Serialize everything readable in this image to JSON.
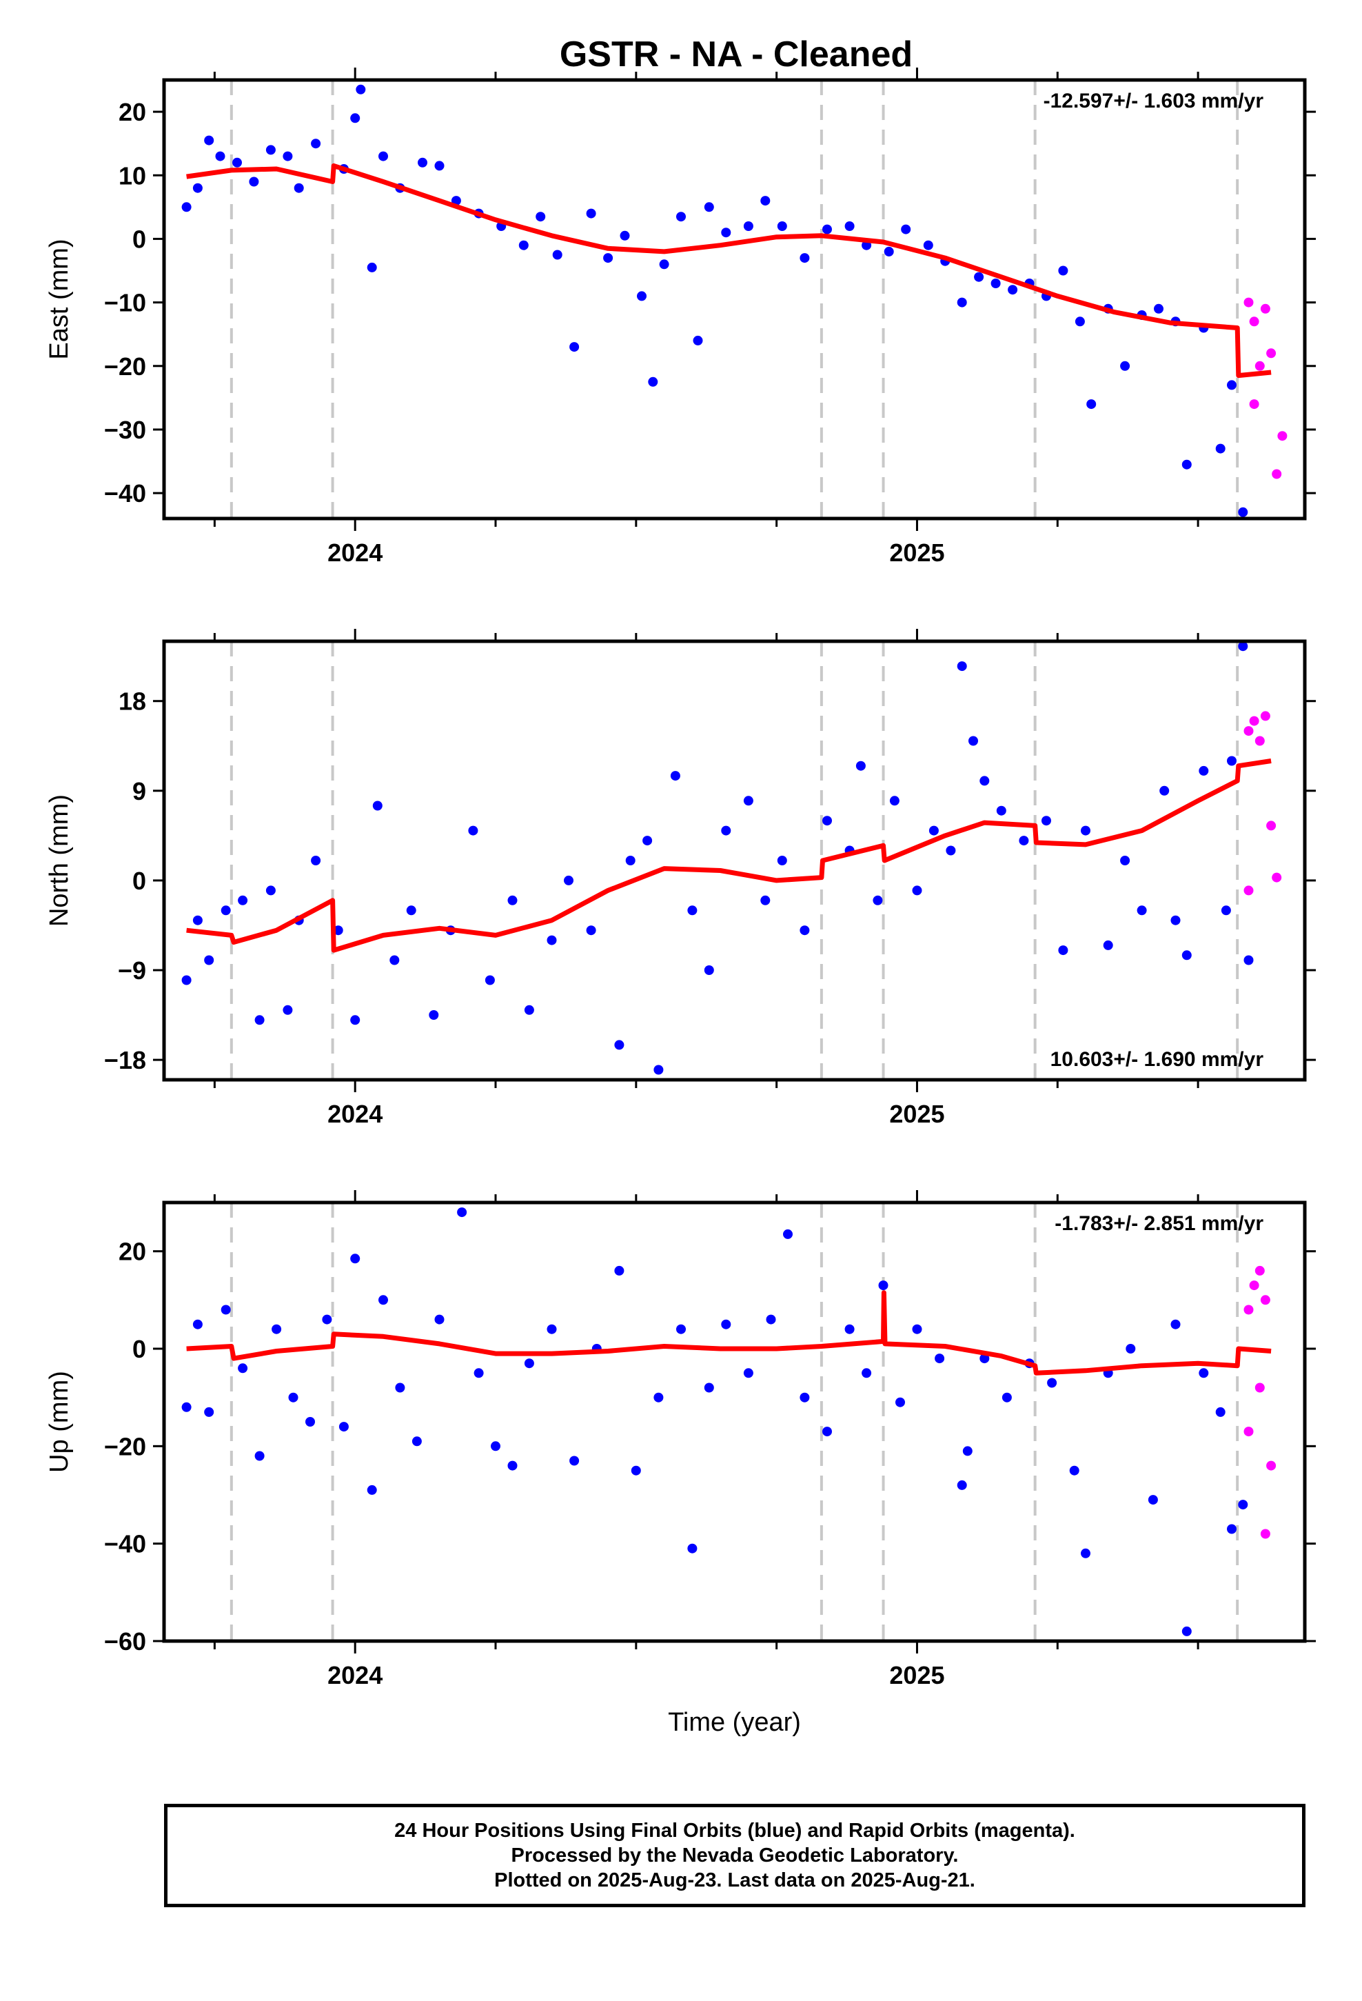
{
  "title": "GSTR  - NA - Cleaned",
  "footer": {
    "line1": "24 Hour Positions Using Final Orbits (blue) and Rapid Orbits (magenta).",
    "line2": "Processed by the Nevada Geodetic Laboratory.",
    "line3": "Plotted on 2025-Aug-23. Last data on 2025-Aug-21."
  },
  "colors": {
    "final": "#0000ff",
    "rapid": "#ff00ff",
    "model": "#ff0000",
    "event": "#c8c8c8"
  },
  "chart_data": [
    {
      "type": "scatter",
      "ylabel": "East (mm)",
      "xlabel": "",
      "rate": "-12.597+/- 1.603 mm/yr",
      "rate_position": "top-right",
      "xlim": [
        2023.66,
        2025.69
      ],
      "ylim": [
        -44,
        25
      ],
      "yticks": [
        20,
        10,
        0,
        -10,
        -20,
        -30,
        -40
      ],
      "xticks": [
        "2024",
        "2025"
      ],
      "events": [
        2023.78,
        2023.96,
        2024.83,
        2024.94,
        2025.21,
        2025.57
      ],
      "model": [
        [
          2023.7,
          9.8
        ],
        [
          2023.78,
          10.8
        ],
        [
          2023.86,
          11.0
        ],
        [
          2023.96,
          9.0
        ],
        [
          2023.962,
          11.5
        ],
        [
          2024.05,
          9.0
        ],
        [
          2024.15,
          6.0
        ],
        [
          2024.25,
          3.0
        ],
        [
          2024.35,
          0.5
        ],
        [
          2024.45,
          -1.5
        ],
        [
          2024.55,
          -2.0
        ],
        [
          2024.65,
          -1.0
        ],
        [
          2024.75,
          0.3
        ],
        [
          2024.83,
          0.5
        ],
        [
          2024.94,
          -0.5
        ],
        [
          2025.05,
          -3.0
        ],
        [
          2025.15,
          -6.0
        ],
        [
          2025.25,
          -9.0
        ],
        [
          2025.35,
          -11.5
        ],
        [
          2025.45,
          -13.2
        ],
        [
          2025.57,
          -14.0
        ],
        [
          2025.572,
          -21.5
        ],
        [
          2025.63,
          -21.0
        ]
      ],
      "final_points": [
        [
          2023.7,
          5.0
        ],
        [
          2023.72,
          8.0
        ],
        [
          2023.74,
          15.5
        ],
        [
          2023.76,
          13.0
        ],
        [
          2023.79,
          12.0
        ],
        [
          2023.82,
          9.0
        ],
        [
          2023.85,
          14.0
        ],
        [
          2023.88,
          13.0
        ],
        [
          2023.9,
          8.0
        ],
        [
          2023.93,
          15.0
        ],
        [
          2023.98,
          11.0
        ],
        [
          2024.0,
          19.0
        ],
        [
          2024.01,
          23.5
        ],
        [
          2024.03,
          -4.5
        ],
        [
          2024.05,
          13.0
        ],
        [
          2024.08,
          8.0
        ],
        [
          2024.12,
          12.0
        ],
        [
          2024.15,
          11.5
        ],
        [
          2024.18,
          6.0
        ],
        [
          2024.22,
          4.0
        ],
        [
          2024.26,
          2.0
        ],
        [
          2024.3,
          -1.0
        ],
        [
          2024.33,
          3.5
        ],
        [
          2024.36,
          -2.5
        ],
        [
          2024.39,
          -17.0
        ],
        [
          2024.42,
          4.0
        ],
        [
          2024.45,
          -3.0
        ],
        [
          2024.48,
          0.5
        ],
        [
          2024.51,
          -9.0
        ],
        [
          2024.53,
          -22.5
        ],
        [
          2024.55,
          -4.0
        ],
        [
          2024.58,
          3.5
        ],
        [
          2024.61,
          -16.0
        ],
        [
          2024.63,
          5.0
        ],
        [
          2024.66,
          1.0
        ],
        [
          2024.7,
          2.0
        ],
        [
          2024.73,
          6.0
        ],
        [
          2024.76,
          2.0
        ],
        [
          2024.8,
          -3.0
        ],
        [
          2024.84,
          1.5
        ],
        [
          2024.88,
          2.0
        ],
        [
          2024.91,
          -1.0
        ],
        [
          2024.95,
          -2.0
        ],
        [
          2024.98,
          1.5
        ],
        [
          2025.02,
          -1.0
        ],
        [
          2025.05,
          -3.5
        ],
        [
          2025.08,
          -10.0
        ],
        [
          2025.11,
          -6.0
        ],
        [
          2025.14,
          -7.0
        ],
        [
          2025.17,
          -8.0
        ],
        [
          2025.2,
          -7.0
        ],
        [
          2025.23,
          -9.0
        ],
        [
          2025.26,
          -5.0
        ],
        [
          2025.29,
          -13.0
        ],
        [
          2025.31,
          -26.0
        ],
        [
          2025.34,
          -11.0
        ],
        [
          2025.37,
          -20.0
        ],
        [
          2025.4,
          -12.0
        ],
        [
          2025.43,
          -11.0
        ],
        [
          2025.46,
          -13.0
        ],
        [
          2025.48,
          -35.5
        ],
        [
          2025.51,
          -14.0
        ],
        [
          2025.54,
          -33.0
        ],
        [
          2025.56,
          -23.0
        ],
        [
          2025.58,
          -43.0
        ]
      ],
      "rapid_points": [
        [
          2025.59,
          -10.0
        ],
        [
          2025.6,
          -13.0
        ],
        [
          2025.61,
          -20.0
        ],
        [
          2025.62,
          -11.0
        ],
        [
          2025.63,
          -18.0
        ],
        [
          2025.64,
          -37.0
        ],
        [
          2025.65,
          -31.0
        ],
        [
          2025.6,
          -26.0
        ]
      ]
    },
    {
      "type": "scatter",
      "ylabel": "North (mm)",
      "xlabel": "",
      "rate": "10.603+/- 1.690 mm/yr",
      "rate_position": "bottom-right",
      "xlim": [
        2023.66,
        2025.69
      ],
      "ylim": [
        -20,
        24
      ],
      "yticks": [
        18,
        9,
        0,
        -9,
        -18
      ],
      "xticks": [
        "2024",
        "2025"
      ],
      "events": [
        2023.78,
        2023.96,
        2024.83,
        2024.94,
        2025.21,
        2025.57
      ],
      "model": [
        [
          2023.7,
          -5.0
        ],
        [
          2023.78,
          -5.5
        ],
        [
          2023.784,
          -6.2
        ],
        [
          2023.86,
          -5.0
        ],
        [
          2023.96,
          -2.0
        ],
        [
          2023.962,
          -7.0
        ],
        [
          2024.05,
          -5.5
        ],
        [
          2024.15,
          -4.8
        ],
        [
          2024.25,
          -5.5
        ],
        [
          2024.35,
          -4.0
        ],
        [
          2024.45,
          -1.0
        ],
        [
          2024.55,
          1.2
        ],
        [
          2024.65,
          1.0
        ],
        [
          2024.75,
          0.0
        ],
        [
          2024.83,
          0.3
        ],
        [
          2024.832,
          2.0
        ],
        [
          2024.94,
          3.5
        ],
        [
          2024.942,
          2.0
        ],
        [
          2025.05,
          4.5
        ],
        [
          2025.12,
          5.8
        ],
        [
          2025.21,
          5.5
        ],
        [
          2025.212,
          3.8
        ],
        [
          2025.3,
          3.6
        ],
        [
          2025.4,
          5.0
        ],
        [
          2025.5,
          8.0
        ],
        [
          2025.57,
          10.0
        ],
        [
          2025.572,
          11.5
        ],
        [
          2025.63,
          12.0
        ]
      ],
      "final_points": [
        [
          2023.7,
          -10.0
        ],
        [
          2023.72,
          -4.0
        ],
        [
          2023.74,
          -8.0
        ],
        [
          2023.77,
          -3.0
        ],
        [
          2023.8,
          -2.0
        ],
        [
          2023.83,
          -14.0
        ],
        [
          2023.85,
          -1.0
        ],
        [
          2023.88,
          -13.0
        ],
        [
          2023.9,
          -4.0
        ],
        [
          2023.93,
          2.0
        ],
        [
          2023.97,
          -5.0
        ],
        [
          2024.0,
          -14.0
        ],
        [
          2024.04,
          7.5
        ],
        [
          2024.07,
          -8.0
        ],
        [
          2024.1,
          -3.0
        ],
        [
          2024.14,
          -13.5
        ],
        [
          2024.17,
          -5.0
        ],
        [
          2024.21,
          5.0
        ],
        [
          2024.24,
          -10.0
        ],
        [
          2024.28,
          -2.0
        ],
        [
          2024.31,
          -13.0
        ],
        [
          2024.35,
          -6.0
        ],
        [
          2024.38,
          0.0
        ],
        [
          2024.42,
          -5.0
        ],
        [
          2024.47,
          -16.5
        ],
        [
          2024.49,
          2.0
        ],
        [
          2024.52,
          4.0
        ],
        [
          2024.54,
          -19.0
        ],
        [
          2024.57,
          10.5
        ],
        [
          2024.6,
          -3.0
        ],
        [
          2024.63,
          -9.0
        ],
        [
          2024.66,
          5.0
        ],
        [
          2024.7,
          8.0
        ],
        [
          2024.73,
          -2.0
        ],
        [
          2024.76,
          2.0
        ],
        [
          2024.8,
          -5.0
        ],
        [
          2024.84,
          6.0
        ],
        [
          2024.88,
          3.0
        ],
        [
          2024.9,
          11.5
        ],
        [
          2024.93,
          -2.0
        ],
        [
          2024.96,
          8.0
        ],
        [
          2025.0,
          -1.0
        ],
        [
          2025.03,
          5.0
        ],
        [
          2025.06,
          3.0
        ],
        [
          2025.08,
          21.5
        ],
        [
          2025.1,
          14.0
        ],
        [
          2025.12,
          10.0
        ],
        [
          2025.15,
          7.0
        ],
        [
          2025.19,
          4.0
        ],
        [
          2025.23,
          6.0
        ],
        [
          2025.26,
          -7.0
        ],
        [
          2025.3,
          5.0
        ],
        [
          2025.34,
          -6.5
        ],
        [
          2025.37,
          2.0
        ],
        [
          2025.4,
          -3.0
        ],
        [
          2025.44,
          9.0
        ],
        [
          2025.46,
          -4.0
        ],
        [
          2025.48,
          -7.5
        ],
        [
          2025.51,
          11.0
        ],
        [
          2025.55,
          -3.0
        ],
        [
          2025.56,
          12.0
        ],
        [
          2025.58,
          23.5
        ],
        [
          2025.59,
          -8.0
        ]
      ],
      "rapid_points": [
        [
          2025.59,
          15.0
        ],
        [
          2025.6,
          16.0
        ],
        [
          2025.61,
          14.0
        ],
        [
          2025.62,
          16.5
        ],
        [
          2025.63,
          5.5
        ],
        [
          2025.64,
          0.3
        ],
        [
          2025.59,
          -1.0
        ]
      ]
    },
    {
      "type": "scatter",
      "ylabel": "Up (mm)",
      "xlabel": "Time (year)",
      "rate": "-1.783+/- 2.851 mm/yr",
      "rate_position": "top-right",
      "xlim": [
        2023.66,
        2025.69
      ],
      "ylim": [
        -60,
        30
      ],
      "yticks": [
        20,
        0,
        -20,
        -40,
        -60
      ],
      "xticks": [
        "2024",
        "2025"
      ],
      "events": [
        2023.78,
        2023.96,
        2024.83,
        2024.94,
        2025.21,
        2025.57
      ],
      "model": [
        [
          2023.7,
          0.0
        ],
        [
          2023.78,
          0.5
        ],
        [
          2023.784,
          -2.0
        ],
        [
          2023.86,
          -0.5
        ],
        [
          2023.96,
          0.5
        ],
        [
          2023.962,
          3.0
        ],
        [
          2024.05,
          2.5
        ],
        [
          2024.15,
          1.0
        ],
        [
          2024.25,
          -1.0
        ],
        [
          2024.35,
          -1.0
        ],
        [
          2024.45,
          -0.5
        ],
        [
          2024.55,
          0.5
        ],
        [
          2024.65,
          0.0
        ],
        [
          2024.75,
          0.0
        ],
        [
          2024.83,
          0.5
        ],
        [
          2024.94,
          1.5
        ],
        [
          2024.941,
          11.5
        ],
        [
          2024.943,
          1.0
        ],
        [
          2025.05,
          0.5
        ],
        [
          2025.15,
          -1.5
        ],
        [
          2025.21,
          -3.5
        ],
        [
          2025.212,
          -5.0
        ],
        [
          2025.3,
          -4.5
        ],
        [
          2025.4,
          -3.5
        ],
        [
          2025.5,
          -3.0
        ],
        [
          2025.57,
          -3.5
        ],
        [
          2025.572,
          0.0
        ],
        [
          2025.63,
          -0.5
        ]
      ],
      "final_points": [
        [
          2023.7,
          -12.0
        ],
        [
          2023.72,
          5.0
        ],
        [
          2023.74,
          -13.0
        ],
        [
          2023.77,
          8.0
        ],
        [
          2023.8,
          -4.0
        ],
        [
          2023.83,
          -22.0
        ],
        [
          2023.86,
          4.0
        ],
        [
          2023.89,
          -10.0
        ],
        [
          2023.92,
          -15.0
        ],
        [
          2023.95,
          6.0
        ],
        [
          2023.98,
          -16.0
        ],
        [
          2024.0,
          18.5
        ],
        [
          2024.03,
          -29.0
        ],
        [
          2024.05,
          10.0
        ],
        [
          2024.08,
          -8.0
        ],
        [
          2024.11,
          -19.0
        ],
        [
          2024.15,
          6.0
        ],
        [
          2024.19,
          28.0
        ],
        [
          2024.22,
          -5.0
        ],
        [
          2024.25,
          -20.0
        ],
        [
          2024.28,
          -24.0
        ],
        [
          2024.31,
          -3.0
        ],
        [
          2024.35,
          4.0
        ],
        [
          2024.39,
          -23.0
        ],
        [
          2024.43,
          0.0
        ],
        [
          2024.47,
          16.0
        ],
        [
          2024.5,
          -25.0
        ],
        [
          2024.54,
          -10.0
        ],
        [
          2024.58,
          4.0
        ],
        [
          2024.6,
          -41.0
        ],
        [
          2024.63,
          -8.0
        ],
        [
          2024.66,
          5.0
        ],
        [
          2024.7,
          -5.0
        ],
        [
          2024.74,
          6.0
        ],
        [
          2024.77,
          23.5
        ],
        [
          2024.8,
          -10.0
        ],
        [
          2024.84,
          -17.0
        ],
        [
          2024.88,
          4.0
        ],
        [
          2024.91,
          -5.0
        ],
        [
          2024.94,
          13.0
        ],
        [
          2024.97,
          -11.0
        ],
        [
          2025.0,
          4.0
        ],
        [
          2025.04,
          -2.0
        ],
        [
          2025.08,
          -28.0
        ],
        [
          2025.09,
          -21.0
        ],
        [
          2025.12,
          -2.0
        ],
        [
          2025.16,
          -10.0
        ],
        [
          2025.2,
          -3.0
        ],
        [
          2025.24,
          -7.0
        ],
        [
          2025.28,
          -25.0
        ],
        [
          2025.3,
          -42.0
        ],
        [
          2025.34,
          -5.0
        ],
        [
          2025.38,
          0.0
        ],
        [
          2025.42,
          -31.0
        ],
        [
          2025.46,
          5.0
        ],
        [
          2025.48,
          -58.0
        ],
        [
          2025.51,
          -5.0
        ],
        [
          2025.54,
          -13.0
        ],
        [
          2025.56,
          -37.0
        ],
        [
          2025.58,
          -32.0
        ]
      ],
      "rapid_points": [
        [
          2025.59,
          8.0
        ],
        [
          2025.6,
          13.0
        ],
        [
          2025.61,
          16.0
        ],
        [
          2025.62,
          10.0
        ],
        [
          2025.63,
          -24.0
        ],
        [
          2025.62,
          -38.0
        ],
        [
          2025.61,
          -8.0
        ],
        [
          2025.59,
          -17.0
        ]
      ]
    }
  ]
}
